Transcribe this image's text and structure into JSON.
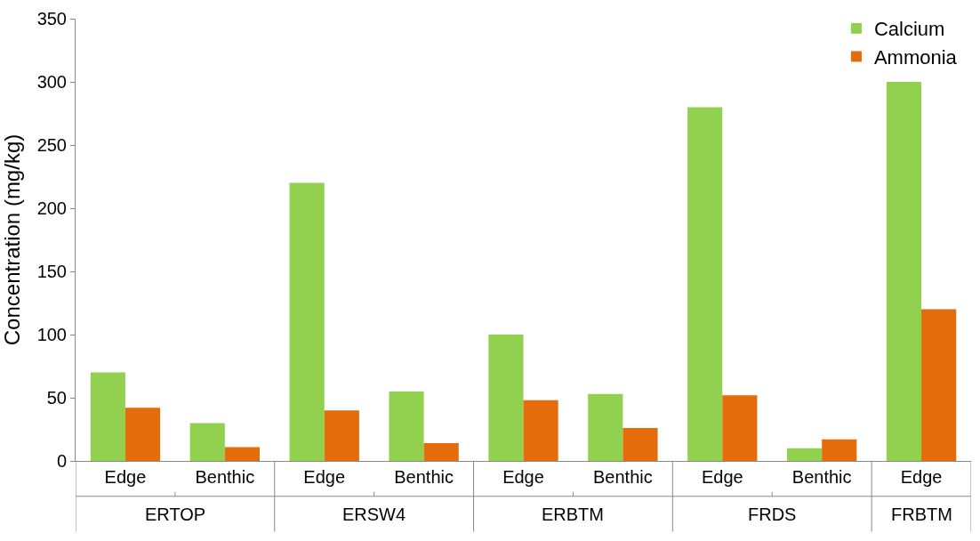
{
  "chart_data": {
    "type": "bar",
    "ylabel": "Concentration (mg/kg)",
    "categories": [
      "Edge",
      "Benthic",
      "Edge",
      "Benthic",
      "Edge",
      "Benthic",
      "Edge",
      "Benthic",
      "Edge"
    ],
    "annotations": [
      "ERTOP",
      "ERSW4",
      "ERBTM",
      "FRDS",
      "FRBTM"
    ],
    "series": [
      {
        "name": "Calcium",
        "color": "#92d050",
        "values": [
          70,
          30,
          220,
          55,
          100,
          53,
          280,
          10,
          300
        ]
      },
      {
        "name": "Ammonia",
        "color": "#e46c0a",
        "values": [
          42,
          11,
          40,
          14,
          48,
          26,
          52,
          17,
          120
        ]
      }
    ],
    "ylim": [
      0,
      350
    ],
    "yticks": [
      0,
      50,
      100,
      150,
      200,
      250,
      300,
      350
    ],
    "legend": "top right"
  }
}
